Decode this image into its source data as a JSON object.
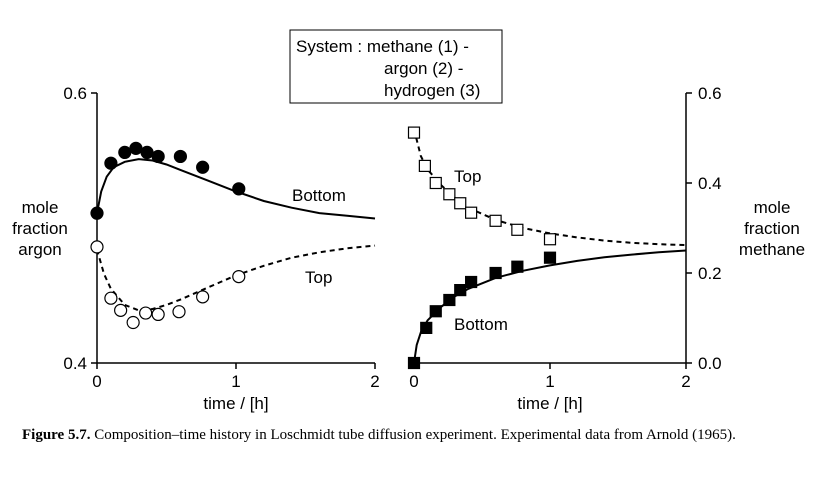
{
  "system_box": {
    "line1": "System : methane (1) -",
    "line2": "argon (2) -",
    "line3": "hydrogen (3)"
  },
  "caption": {
    "label": "Figure 5.7.",
    "text": "Composition–time history in Loschmidt tube diffusion experiment. Experimental data from Arnold (1965)."
  },
  "chart_data": [
    {
      "type": "scatter",
      "xlabel": "time / [h]",
      "ylabel": [
        "mole",
        "fraction",
        "argon"
      ],
      "xlim": [
        0,
        2
      ],
      "ylim": [
        0.4,
        0.6
      ],
      "xticks": [
        "0",
        "1",
        "2"
      ],
      "yticks": [
        "0.4",
        "0.6"
      ],
      "series": [
        {
          "name": "Bottom",
          "marker": "filled-circle",
          "points": [
            [
              0.0,
              0.511
            ],
            [
              0.1,
              0.548
            ],
            [
              0.2,
              0.556
            ],
            [
              0.28,
              0.559
            ],
            [
              0.36,
              0.556
            ],
            [
              0.44,
              0.553
            ],
            [
              0.6,
              0.553
            ],
            [
              0.76,
              0.545
            ],
            [
              1.02,
              0.529
            ]
          ],
          "model": [
            [
              0.0,
              0.511
            ],
            [
              0.03,
              0.527
            ],
            [
              0.07,
              0.538
            ],
            [
              0.12,
              0.545
            ],
            [
              0.2,
              0.549
            ],
            [
              0.3,
              0.551
            ],
            [
              0.4,
              0.55
            ],
            [
              0.5,
              0.547
            ],
            [
              0.6,
              0.543
            ],
            [
              0.8,
              0.535
            ],
            [
              1.0,
              0.527
            ],
            [
              1.2,
              0.52
            ],
            [
              1.4,
              0.515
            ],
            [
              1.6,
              0.511
            ],
            [
              1.8,
              0.509
            ],
            [
              2.0,
              0.507
            ]
          ]
        },
        {
          "name": "Top",
          "marker": "open-circle",
          "points": [
            [
              0.0,
              0.486
            ],
            [
              0.1,
              0.448
            ],
            [
              0.17,
              0.439
            ],
            [
              0.26,
              0.43
            ],
            [
              0.35,
              0.437
            ],
            [
              0.44,
              0.436
            ],
            [
              0.59,
              0.438
            ],
            [
              0.76,
              0.449
            ],
            [
              1.02,
              0.464
            ]
          ],
          "model": [
            [
              0.0,
              0.484
            ],
            [
              0.05,
              0.466
            ],
            [
              0.1,
              0.455
            ],
            [
              0.2,
              0.443
            ],
            [
              0.3,
              0.439
            ],
            [
              0.4,
              0.44
            ],
            [
              0.5,
              0.443
            ],
            [
              0.6,
              0.447
            ],
            [
              0.8,
              0.456
            ],
            [
              1.0,
              0.465
            ],
            [
              1.2,
              0.472
            ],
            [
              1.4,
              0.478
            ],
            [
              1.6,
              0.482
            ],
            [
              1.8,
              0.485
            ],
            [
              2.0,
              0.487
            ]
          ]
        }
      ]
    },
    {
      "type": "scatter",
      "xlabel": "time / [h]",
      "ylabel": [
        "mole",
        "fraction",
        "methane"
      ],
      "xlim": [
        0,
        2
      ],
      "ylim": [
        0.0,
        0.6
      ],
      "xticks": [
        "0",
        "1",
        "2"
      ],
      "yticks": [
        "0.0",
        "0.2",
        "0.4",
        "0.6"
      ],
      "series": [
        {
          "name": "Top",
          "marker": "open-square",
          "points": [
            [
              0.0,
              0.512
            ],
            [
              0.08,
              0.438
            ],
            [
              0.16,
              0.4
            ],
            [
              0.26,
              0.375
            ],
            [
              0.34,
              0.355
            ],
            [
              0.42,
              0.334
            ],
            [
              0.6,
              0.316
            ],
            [
              0.76,
              0.296
            ],
            [
              1.0,
              0.275
            ]
          ],
          "model": [
            [
              0.0,
              0.52
            ],
            [
              0.05,
              0.46
            ],
            [
              0.1,
              0.43
            ],
            [
              0.2,
              0.395
            ],
            [
              0.3,
              0.367
            ],
            [
              0.4,
              0.345
            ],
            [
              0.6,
              0.318
            ],
            [
              0.8,
              0.3
            ],
            [
              1.0,
              0.288
            ],
            [
              1.2,
              0.279
            ],
            [
              1.4,
              0.272
            ],
            [
              1.6,
              0.267
            ],
            [
              1.8,
              0.264
            ],
            [
              2.0,
              0.262
            ]
          ]
        },
        {
          "name": "Bottom",
          "marker": "filled-square",
          "points": [
            [
              0.0,
              0.0
            ],
            [
              0.09,
              0.078
            ],
            [
              0.16,
              0.115
            ],
            [
              0.26,
              0.14
            ],
            [
              0.34,
              0.162
            ],
            [
              0.42,
              0.18
            ],
            [
              0.6,
              0.2
            ],
            [
              0.76,
              0.214
            ],
            [
              1.0,
              0.234
            ]
          ],
          "model": [
            [
              0.0,
              0.0
            ],
            [
              0.02,
              0.04
            ],
            [
              0.05,
              0.068
            ],
            [
              0.1,
              0.095
            ],
            [
              0.2,
              0.125
            ],
            [
              0.3,
              0.148
            ],
            [
              0.4,
              0.165
            ],
            [
              0.6,
              0.189
            ],
            [
              0.8,
              0.205
            ],
            [
              1.0,
              0.217
            ],
            [
              1.2,
              0.227
            ],
            [
              1.4,
              0.235
            ],
            [
              1.6,
              0.241
            ],
            [
              1.8,
              0.246
            ],
            [
              2.0,
              0.25
            ]
          ]
        }
      ]
    }
  ]
}
